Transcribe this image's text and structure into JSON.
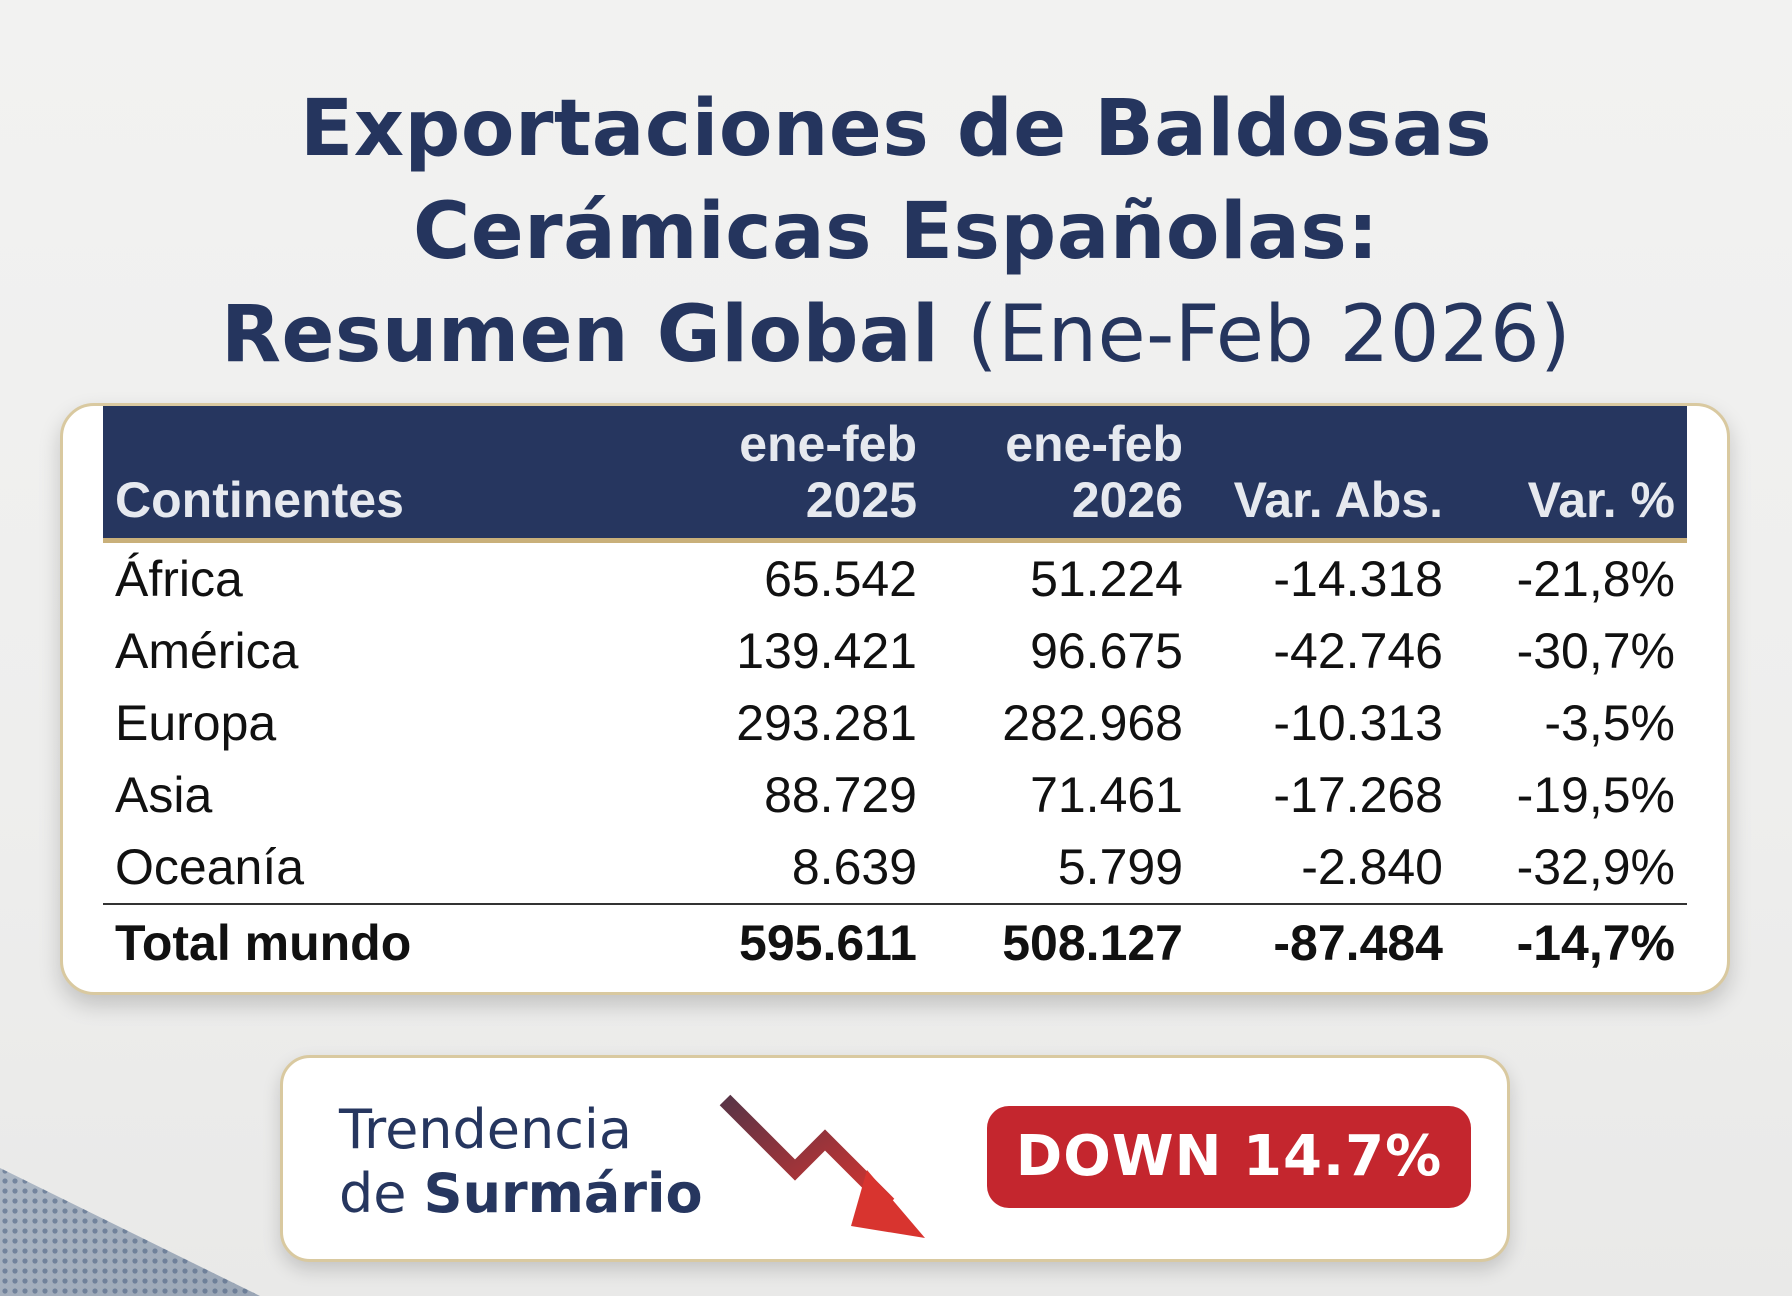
{
  "title": {
    "line1": "Exportaciones de Baldosas",
    "line2": "Cerámicas Españolas:",
    "line3_bold": "Resumen Global",
    "line3_light": "(Ene-Feb 2026)"
  },
  "chart_data": {
    "type": "table",
    "columns": [
      {
        "line1": "",
        "line2": "Continentes"
      },
      {
        "line1": "ene-feb",
        "line2": "2025"
      },
      {
        "line1": "ene-feb",
        "line2": "2026"
      },
      {
        "line1": "",
        "line2": "Var. Abs."
      },
      {
        "line1": "",
        "line2": "Var. %"
      }
    ],
    "rows": [
      [
        "África",
        "65.542",
        "51.224",
        "-14.318",
        "-21,8%"
      ],
      [
        "América",
        "139.421",
        "96.675",
        "-42.746",
        "-30,7%"
      ],
      [
        "Europa",
        "293.281",
        "282.968",
        "-10.313",
        "-3,5%"
      ],
      [
        "Asia",
        "88.729",
        "71.461",
        "-17.268",
        "-19,5%"
      ],
      [
        "Oceanía",
        "8.639",
        "5.799",
        "-2.840",
        "-32,9%"
      ]
    ],
    "total": [
      "Total mundo",
      "595.611",
      "508.127",
      "-87.484",
      "-14,7%"
    ]
  },
  "summary": {
    "label_line1": "Trendencia",
    "label_line2_prefix": "de ",
    "label_line2_bold": "Surmário",
    "badge": "DOWN 14.7%",
    "badge_color": "#c4262e",
    "arrow_icon": "trend-down-arrow"
  },
  "colors": {
    "title": "#25355e",
    "header_bg": "#26365f",
    "header_rule": "#c9b07a",
    "card_border": "#d9c9a0"
  }
}
